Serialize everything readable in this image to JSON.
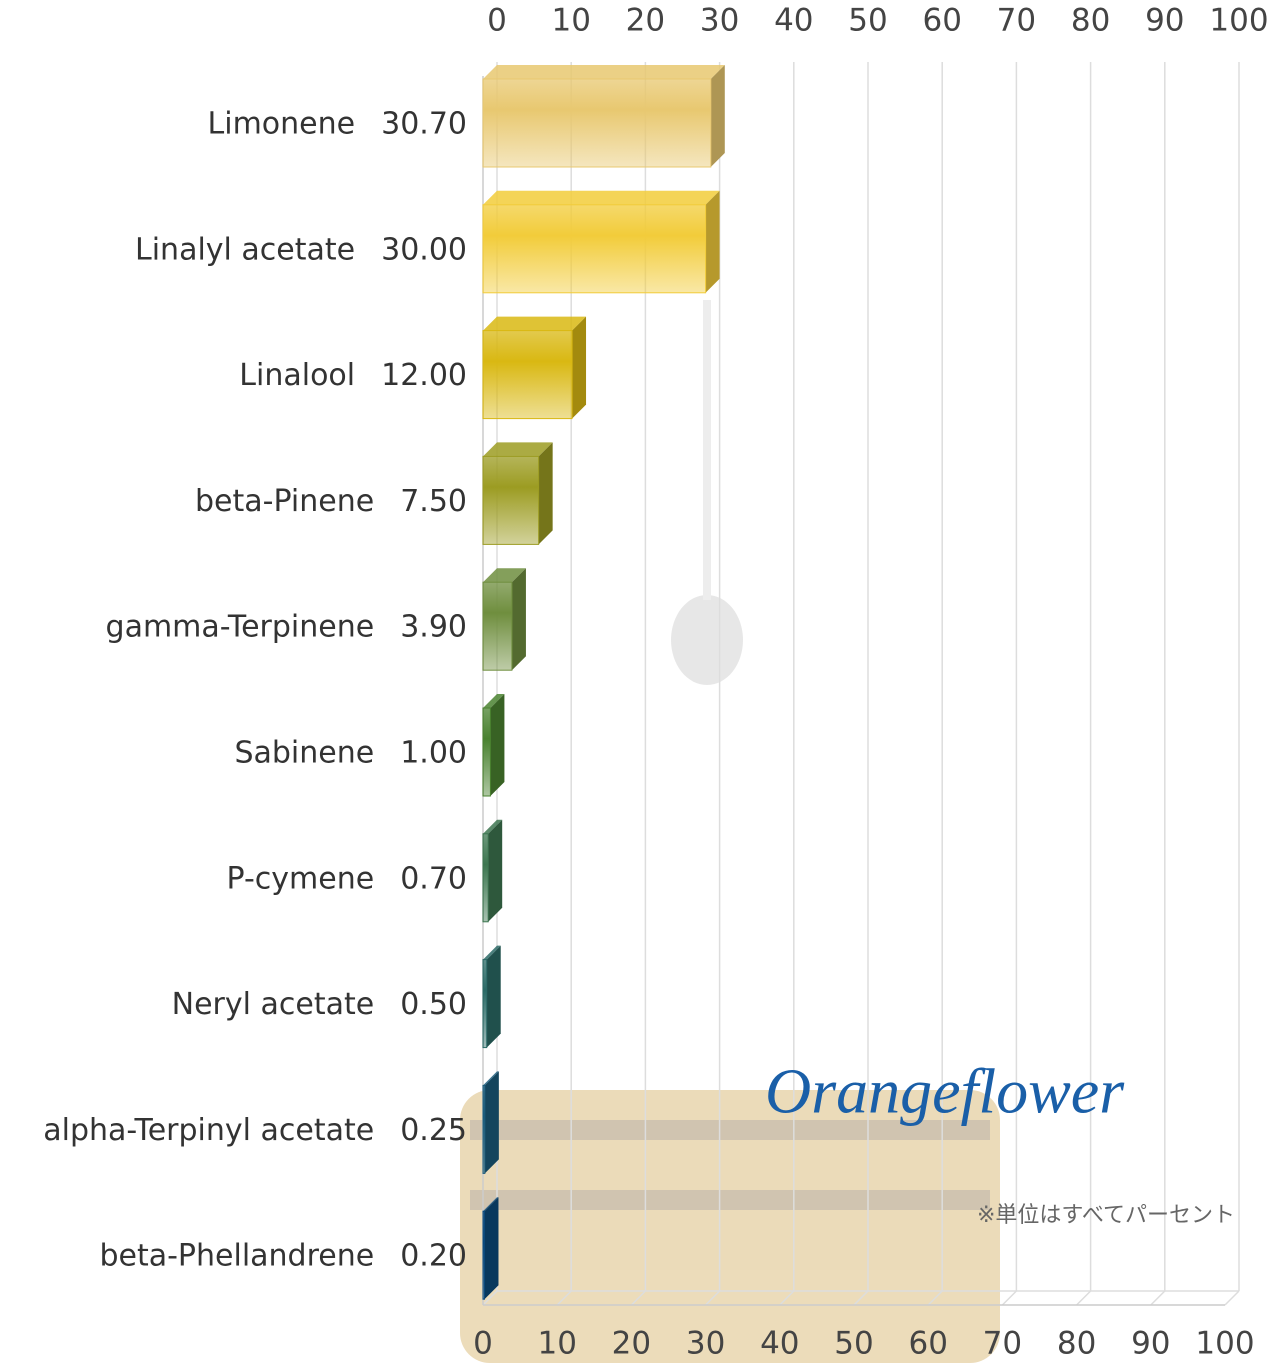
{
  "chart_data": {
    "type": "hbar3d",
    "categories": [
      "Limonene",
      "Linalyl acetate",
      "Linalool",
      "beta-Pinene",
      "gamma-Terpinene",
      "Sabinene",
      "P-cymene",
      "Neryl acetate",
      "alpha-Terpinyl acetate",
      "beta-Phellandrene"
    ],
    "values": [
      30.7,
      30,
      12,
      7.5,
      3.9,
      1,
      0.7,
      0.5,
      0.25,
      0.2
    ],
    "value_labels": [
      "30.70",
      "30.00",
      "12.00",
      "7.50",
      "3.90",
      "1.00",
      "0.70",
      "0.50",
      "0.25",
      "0.20"
    ],
    "colors": [
      "#e8c870",
      "#f2cc3a",
      "#d9b812",
      "#9c9c22",
      "#6f8e3e",
      "#4a8230",
      "#3d7650",
      "#2b6a66",
      "#1b5c7c",
      "#0b4a7c"
    ],
    "xlim": [
      0,
      100
    ],
    "xticks": [
      0,
      10,
      20,
      30,
      40,
      50,
      60,
      70,
      80,
      90,
      100
    ],
    "grid": true,
    "logo": "Orangeflower",
    "note": "※単位はすべてパーセント"
  }
}
